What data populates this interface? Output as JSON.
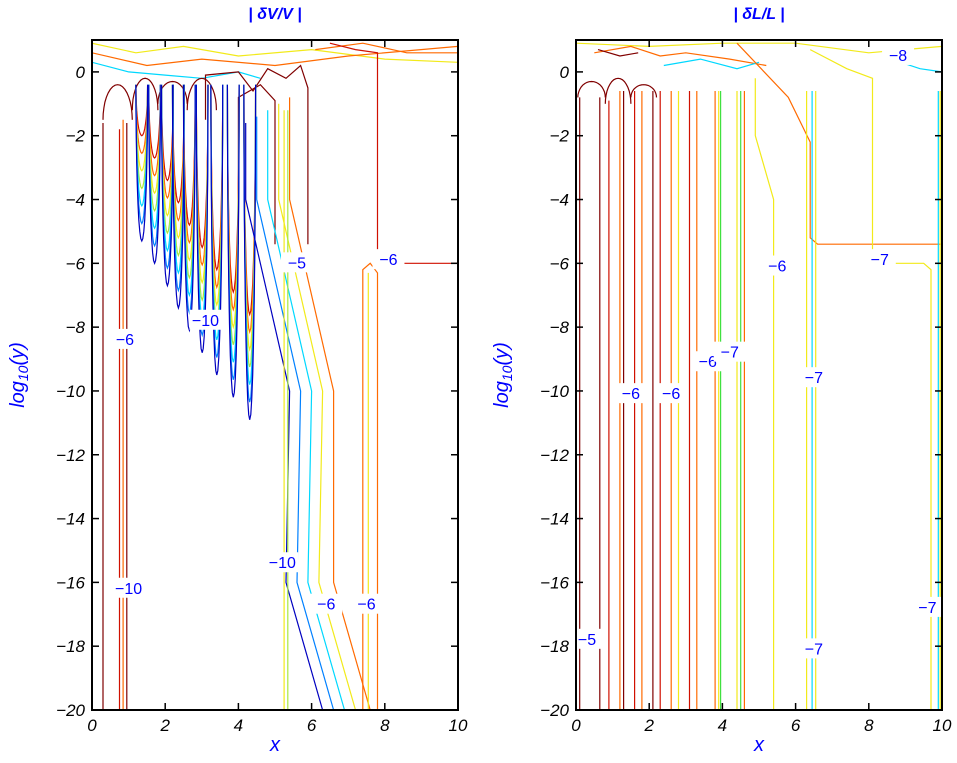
{
  "chart_data": [
    {
      "type": "contour",
      "title": "| δV/V |",
      "xlabel": "x",
      "ylabel": "log10(y)",
      "xlim": [
        0,
        10
      ],
      "ylim": [
        -20,
        1
      ],
      "xticks": [
        0,
        2,
        4,
        6,
        8,
        10
      ],
      "yticks": [
        0,
        -2,
        -4,
        -6,
        -8,
        -10,
        -12,
        -14,
        -16,
        -18,
        -20
      ],
      "contour_labels": [
        {
          "text": "−5",
          "x": 5.6,
          "y": -6.0
        },
        {
          "text": "−6",
          "x": 8.1,
          "y": -5.9
        },
        {
          "text": "−6",
          "x": 0.9,
          "y": -8.4
        },
        {
          "text": "−10",
          "x": 3.1,
          "y": -7.8
        },
        {
          "text": "−10",
          "x": 1.0,
          "y": -16.2
        },
        {
          "text": "−10",
          "x": 5.2,
          "y": -15.4
        },
        {
          "text": "−6",
          "x": 6.4,
          "y": -16.7
        },
        {
          "text": "−6",
          "x": 7.5,
          "y": -16.7
        }
      ]
    },
    {
      "type": "contour",
      "title": "| δL/L |",
      "xlabel": "x",
      "ylabel": "log10(y)",
      "xlim": [
        0,
        10
      ],
      "ylim": [
        -20,
        1
      ],
      "xticks": [
        0,
        2,
        4,
        6,
        8,
        10
      ],
      "yticks": [
        0,
        -2,
        -4,
        -6,
        -8,
        -10,
        -12,
        -14,
        -16,
        -18,
        -20
      ],
      "contour_labels": [
        {
          "text": "−8",
          "x": 8.8,
          "y": 0.5
        },
        {
          "text": "−6",
          "x": 5.5,
          "y": -6.1
        },
        {
          "text": "−7",
          "x": 8.3,
          "y": -5.9
        },
        {
          "text": "−6",
          "x": 3.6,
          "y": -9.1
        },
        {
          "text": "−7",
          "x": 4.2,
          "y": -8.8
        },
        {
          "text": "−6",
          "x": 1.5,
          "y": -10.1
        },
        {
          "text": "−6",
          "x": 2.6,
          "y": -10.1
        },
        {
          "text": "−7",
          "x": 6.5,
          "y": -9.6
        },
        {
          "text": "−5",
          "x": 0.3,
          "y": -17.8
        },
        {
          "text": "−7",
          "x": 6.5,
          "y": -18.1
        },
        {
          "text": "−7",
          "x": 9.6,
          "y": -16.8
        }
      ]
    }
  ]
}
